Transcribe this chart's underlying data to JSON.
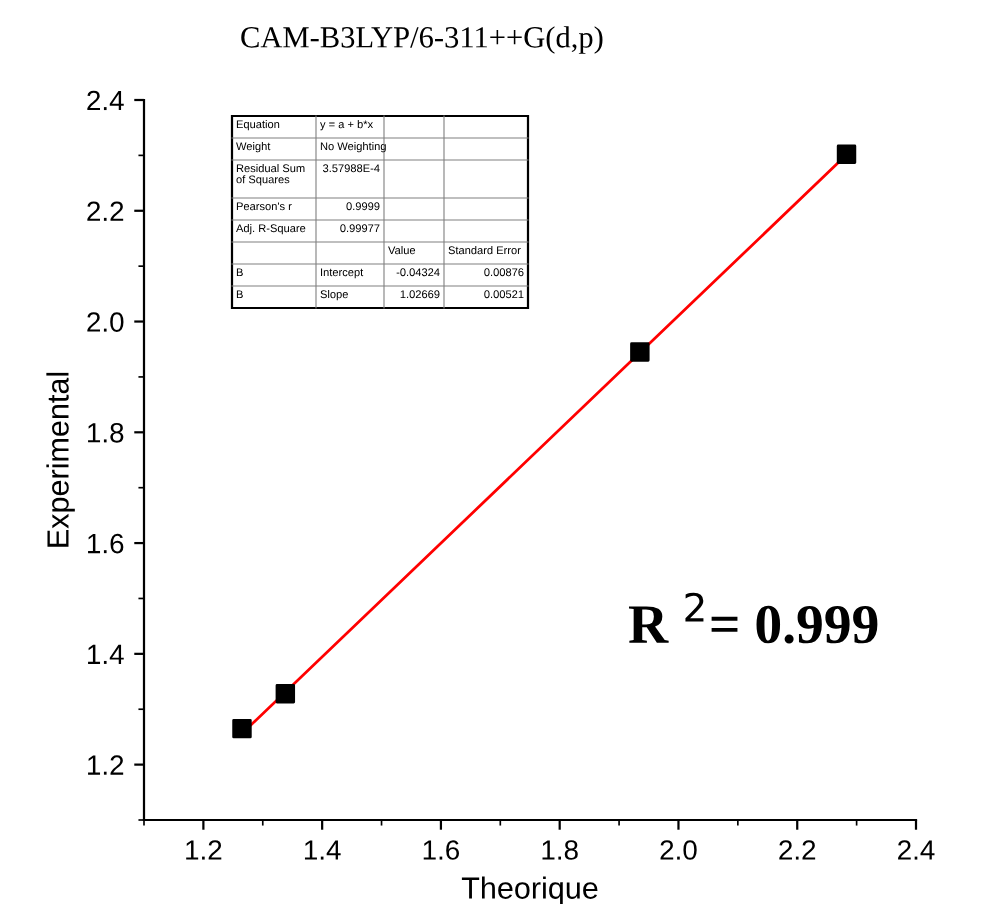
{
  "chart_data": {
    "type": "scatter",
    "title": "CAM-B3LYP/6-311++G(d,p)",
    "xlabel": "Theorique",
    "ylabel": "Experimental",
    "xlim": [
      1.1,
      2.4
    ],
    "ylim": [
      1.1,
      2.4
    ],
    "xticks": [
      1.2,
      1.4,
      1.6,
      1.8,
      {
        "value": 2,
        "label": "2.0"
      },
      2.2,
      2.4
    ],
    "yticks": [
      1.2,
      1.4,
      1.6,
      1.8,
      {
        "value": 2,
        "label": "2.0"
      },
      2.2,
      2.4
    ],
    "grid": false,
    "legend": false,
    "marker": "square",
    "x": [
      1.265,
      1.338,
      1.935,
      2.283
    ],
    "series": [
      {
        "color": "#000000",
        "values": [
          1.265,
          1.328,
          1.945,
          2.302
        ]
      },
      {
        "type": "line",
        "color": "#ff0000",
        "x": [
          1.265,
          2.283
        ],
        "values": [
          1.256,
          2.301
        ],
        "marker": "none",
        "line_style": "solid"
      }
    ],
    "annotations": [
      "Equation",
      "y = a + b*x",
      "Weight",
      "No Weighting",
      "Residual Sum\nof Squares",
      "3.57988E-4",
      "Pearson's r",
      "0.9999",
      "Adj. R-Square",
      "0.99977",
      "Value",
      "Standard Error",
      "B",
      "Intercept",
      "-0.04324",
      "0.00876",
      "B",
      "Slope",
      "1.02669",
      "0.00521",
      "R $^{2}$= 0.999"
    ]
  }
}
